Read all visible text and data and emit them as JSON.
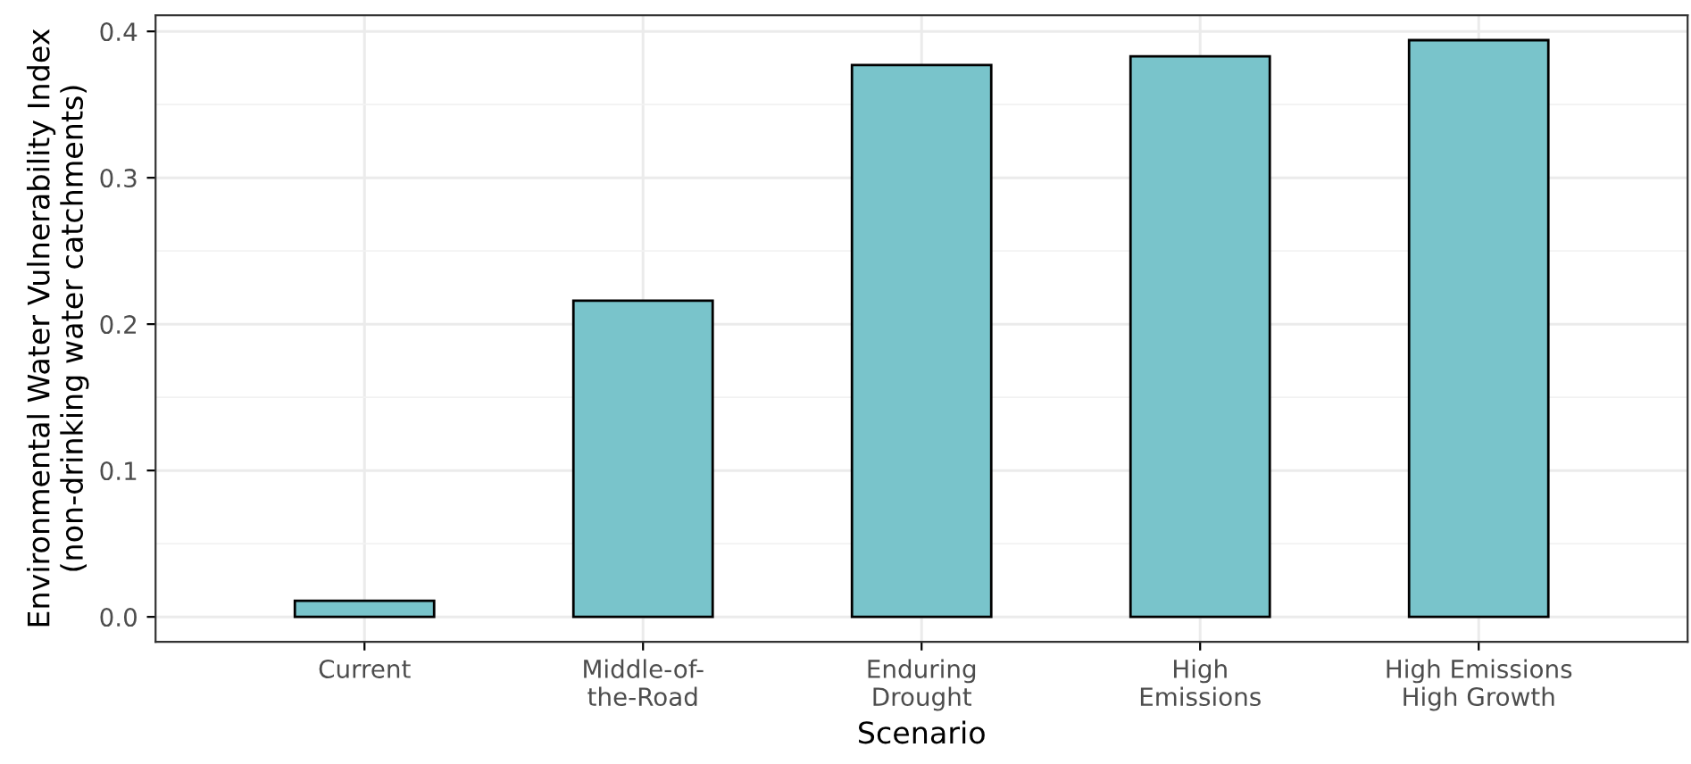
{
  "chart_data": {
    "type": "bar",
    "xlabel": "Scenario",
    "ylabel": "Environmental Water Vulnerability Index\n(non-drinking water catchments)",
    "categories": [
      "Current",
      "Middle-of-\nthe-Road",
      "Enduring\nDrought",
      "High\nEmissions",
      "High Emissions\nHigh Growth"
    ],
    "values": [
      0.011,
      0.216,
      0.377,
      0.383,
      0.394
    ],
    "color": "#79c4cb",
    "ylim": [
      -0.017,
      0.411
    ],
    "yticks": [
      {
        "value": 0.0,
        "label": "0.0"
      },
      0.1,
      0.2,
      0.3,
      0.4
    ],
    "grid": true
  }
}
